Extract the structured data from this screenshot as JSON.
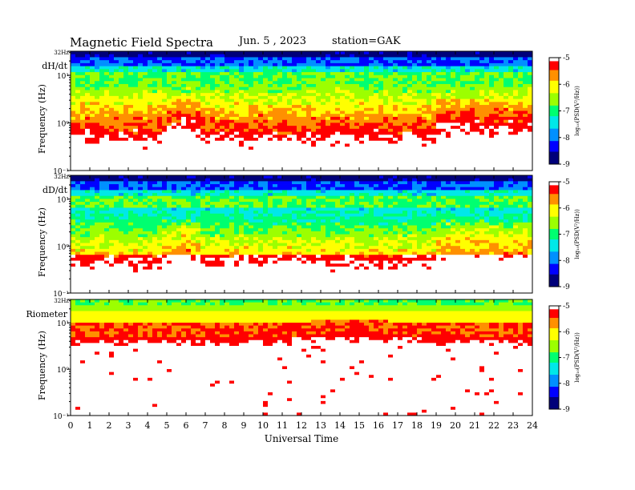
{
  "header": {
    "title": "Magnetic  Field  Spectra",
    "date": "Jun. 5  , 2023",
    "station": "station=GAK"
  },
  "colors": {
    "colormap": [
      "#00007a",
      "#0000ff",
      "#0090ff",
      "#00e8e8",
      "#00ff70",
      "#9cff00",
      "#ffff00",
      "#ff9000",
      "#ff0000",
      "#ffffff"
    ]
  },
  "chart_data": [
    {
      "type": "heatmap",
      "panel_label": "dH/dt",
      "ylabel": "Frequency  (Hz)",
      "yscale": "log",
      "ylim": [
        0.1,
        32
      ],
      "yticks": [
        "10⁻¹",
        "10⁰",
        "10¹",
        "32Hz"
      ],
      "xlim": [
        0,
        24
      ],
      "colorbar": {
        "label": "log₁₀(PSD(V²/Hz))",
        "ticks": [
          "-5",
          "-6",
          "-7",
          "-8",
          "-9"
        ],
        "range": [
          -9,
          -5
        ]
      }
    },
    {
      "type": "heatmap",
      "panel_label": "dD/dt",
      "ylabel": "Frequency  (Hz)",
      "yscale": "log",
      "ylim": [
        0.1,
        32
      ],
      "yticks": [
        "10⁻¹",
        "10⁰",
        "10¹",
        "32Hz"
      ],
      "xlim": [
        0,
        24
      ],
      "colorbar": {
        "label": "log₁₀(PSD(V²/Hz))",
        "ticks": [
          "-5",
          "-6",
          "-7",
          "-8",
          "-9"
        ],
        "range": [
          -9,
          -5
        ]
      }
    },
    {
      "type": "heatmap",
      "panel_label": "Riometer",
      "ylabel": "Frequency  (Hz)",
      "yscale": "log",
      "ylim": [
        0.1,
        32
      ],
      "yticks": [
        "10⁻¹",
        "10⁰",
        "10¹",
        "32Hz"
      ],
      "xlim": [
        0,
        24
      ],
      "xlabel": "Universal Time",
      "xticks": [
        "0",
        "1",
        "2",
        "3",
        "4",
        "5",
        "6",
        "7",
        "8",
        "9",
        "10",
        "11",
        "12",
        "13",
        "14",
        "15",
        "16",
        "17",
        "18",
        "19",
        "20",
        "21",
        "22",
        "23",
        "24"
      ],
      "colorbar": {
        "label": "log₁₀(PSD(V²/Hz))",
        "ticks": [
          "-5",
          "-6",
          "-7",
          "-8",
          "-9"
        ],
        "range": [
          -9,
          -5
        ]
      }
    }
  ]
}
